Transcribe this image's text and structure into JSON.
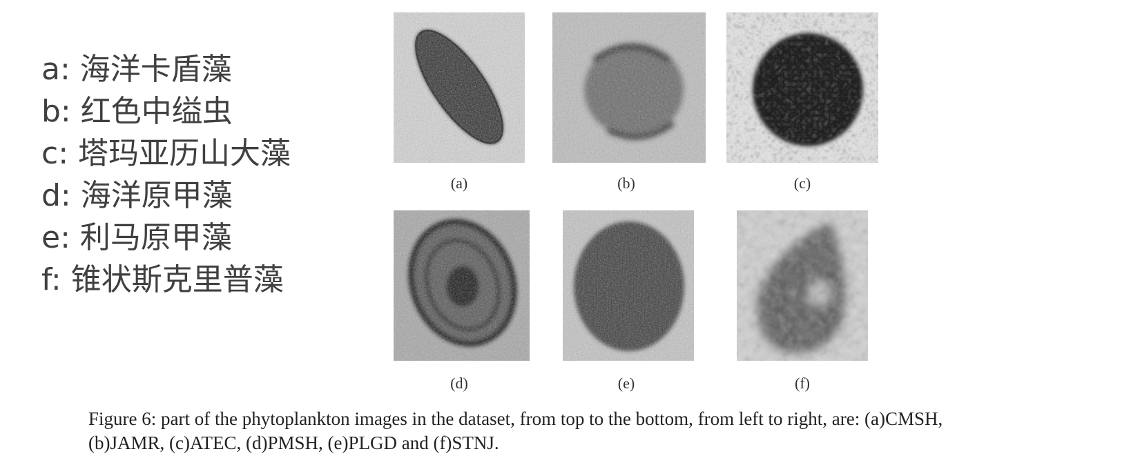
{
  "legend": {
    "items": [
      "a: 海洋卡盾藻",
      "b: 红色中缢虫",
      "c: 塔玛亚历山大藻",
      "d: 海洋原甲藻",
      "e: 利马原甲藻",
      "f: 锥状斯克里普藻"
    ]
  },
  "figure": {
    "panels": [
      {
        "label": "(a)"
      },
      {
        "label": "(b)"
      },
      {
        "label": "(c)"
      },
      {
        "label": "(d)"
      },
      {
        "label": "(e)"
      },
      {
        "label": "(f)"
      }
    ],
    "caption_line1": "Figure 6: part of the phytoplankton images in the dataset, from top to the bottom, from left to right, are: (a)CMSH,",
    "caption_line2": "(b)JAMR, (c)ATEC, (d)PMSH, (e)PLGD and (f)STNJ."
  }
}
